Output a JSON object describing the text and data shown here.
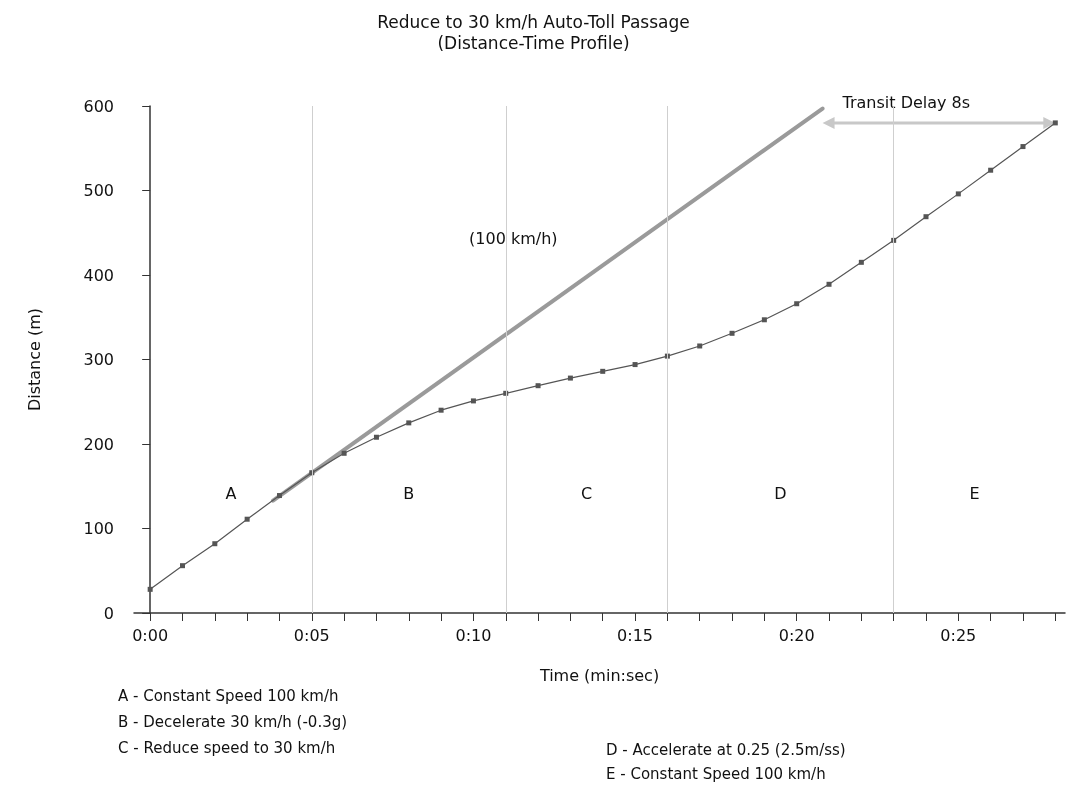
{
  "chart_data": {
    "type": "line",
    "title": "Reduce to 30 km/h Auto-Toll Passage",
    "subtitle": "(Distance-Time Profile)",
    "xlabel": "Time (min:sec)",
    "ylabel": "Distance (m)",
    "xlim": [
      -0.5,
      28.3
    ],
    "xticks": [
      {
        "value": 0,
        "label": "0:00"
      },
      {
        "value": 1,
        "label": null
      },
      {
        "value": 2,
        "label": null
      },
      {
        "value": 3,
        "label": null
      },
      {
        "value": 4,
        "label": null
      },
      {
        "value": 5,
        "label": "0:05"
      },
      {
        "value": 6,
        "label": null
      },
      {
        "value": 7,
        "label": null
      },
      {
        "value": 8,
        "label": null
      },
      {
        "value": 9,
        "label": null
      },
      {
        "value": 10,
        "label": "0:10"
      },
      {
        "value": 11,
        "label": null
      },
      {
        "value": 12,
        "label": null
      },
      {
        "value": 13,
        "label": null
      },
      {
        "value": 14,
        "label": null
      },
      {
        "value": 15,
        "label": "0:15"
      },
      {
        "value": 16,
        "label": null
      },
      {
        "value": 17,
        "label": null
      },
      {
        "value": 18,
        "label": null
      },
      {
        "value": 19,
        "label": null
      },
      {
        "value": 20,
        "label": "0:20"
      },
      {
        "value": 21,
        "label": null
      },
      {
        "value": 22,
        "label": null
      },
      {
        "value": 23,
        "label": null
      },
      {
        "value": 24,
        "label": null
      },
      {
        "value": 25,
        "label": "0:25"
      },
      {
        "value": 26,
        "label": null
      },
      {
        "value": 27,
        "label": null
      },
      {
        "value": 28,
        "label": null
      }
    ],
    "ylim": [
      0,
      600
    ],
    "yticks": [
      0,
      100,
      200,
      300,
      400,
      500,
      600
    ],
    "grid": false,
    "legend": false,
    "series": [
      {
        "color": "#555555",
        "marker": "square",
        "x": [
          0,
          1,
          2,
          3,
          4,
          5,
          6,
          7,
          8,
          9,
          10,
          11,
          12,
          13,
          14,
          15,
          16,
          17,
          18,
          19,
          20,
          21,
          22,
          23,
          24,
          25,
          26,
          27,
          28
        ],
        "values": [
          28,
          56,
          82,
          111,
          139,
          166,
          189,
          208,
          225,
          240,
          251,
          260,
          269,
          278,
          286,
          294,
          304,
          316,
          331,
          347,
          366,
          389,
          415,
          441,
          469,
          496,
          524,
          552,
          580
        ]
      },
      {
        "name": "(100 km/h)",
        "color": "#9a9a9a",
        "marker": "none",
        "x": [
          3.8,
          20.8
        ],
        "values": [
          133,
          597
        ]
      }
    ],
    "ref_lines": [
      {
        "axis": "x",
        "value": 5,
        "label": null,
        "color": "#cfcfcf"
      },
      {
        "axis": "x",
        "value": 11,
        "label": null,
        "color": "#cfcfcf"
      },
      {
        "axis": "x",
        "value": 16,
        "label": null,
        "color": "#cfcfcf"
      },
      {
        "axis": "x",
        "value": 23,
        "label": null,
        "color": "#cfcfcf"
      }
    ],
    "annotations": [
      "Transit Delay 8s",
      "A",
      "B",
      "C",
      "D",
      "E",
      "A - Constant Speed 100 km/h",
      "B - Decelerate 30 km/h (-0.3g)",
      "C - Reduce speed to 30 km/h",
      "D - Accelerate at 0.25 (2.5m/ss)",
      "E - Constant Speed 100 km/h"
    ]
  }
}
